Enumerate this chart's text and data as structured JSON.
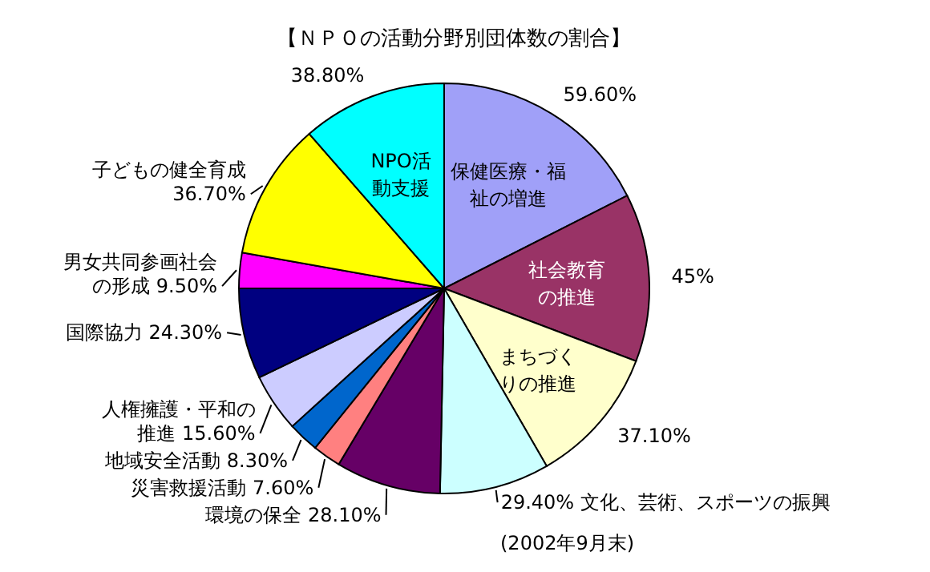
{
  "chart_data": {
    "type": "pie",
    "title": "【ＮＰＯの活動分野別団体数の割合】",
    "categories": [
      "保健医療・福祉の増進",
      "社会教育の推進",
      "まちづくりの推進",
      "文化、芸術、スポーツの振興",
      "環境の保全",
      "災害救援活動",
      "地域安全活動",
      "人権擁護・平和の推進",
      "国際協力",
      "男女共同参画社会の形成",
      "子どもの健全育成",
      "NPO活動支援"
    ],
    "values": [
      59.6,
      45,
      37.1,
      29.4,
      28.1,
      7.6,
      8.3,
      15.6,
      24.3,
      9.5,
      36.7,
      38.8
    ],
    "value_labels": [
      "59.60%",
      "45%",
      "37.10%",
      "29.40%",
      "28.10%",
      "7.60%",
      "8.30%",
      "15.60%",
      "24.30%",
      "9.50%",
      "36.70%",
      "38.80%"
    ],
    "colors": [
      "#a0a0f8",
      "#993366",
      "#ffffcc",
      "#ccffff",
      "#660066",
      "#ff8080",
      "#0066cc",
      "#ccccff",
      "#000080",
      "#ff00ff",
      "#ffff00",
      "#00ffff"
    ],
    "annotations": [
      "(2002年9月末)"
    ]
  }
}
